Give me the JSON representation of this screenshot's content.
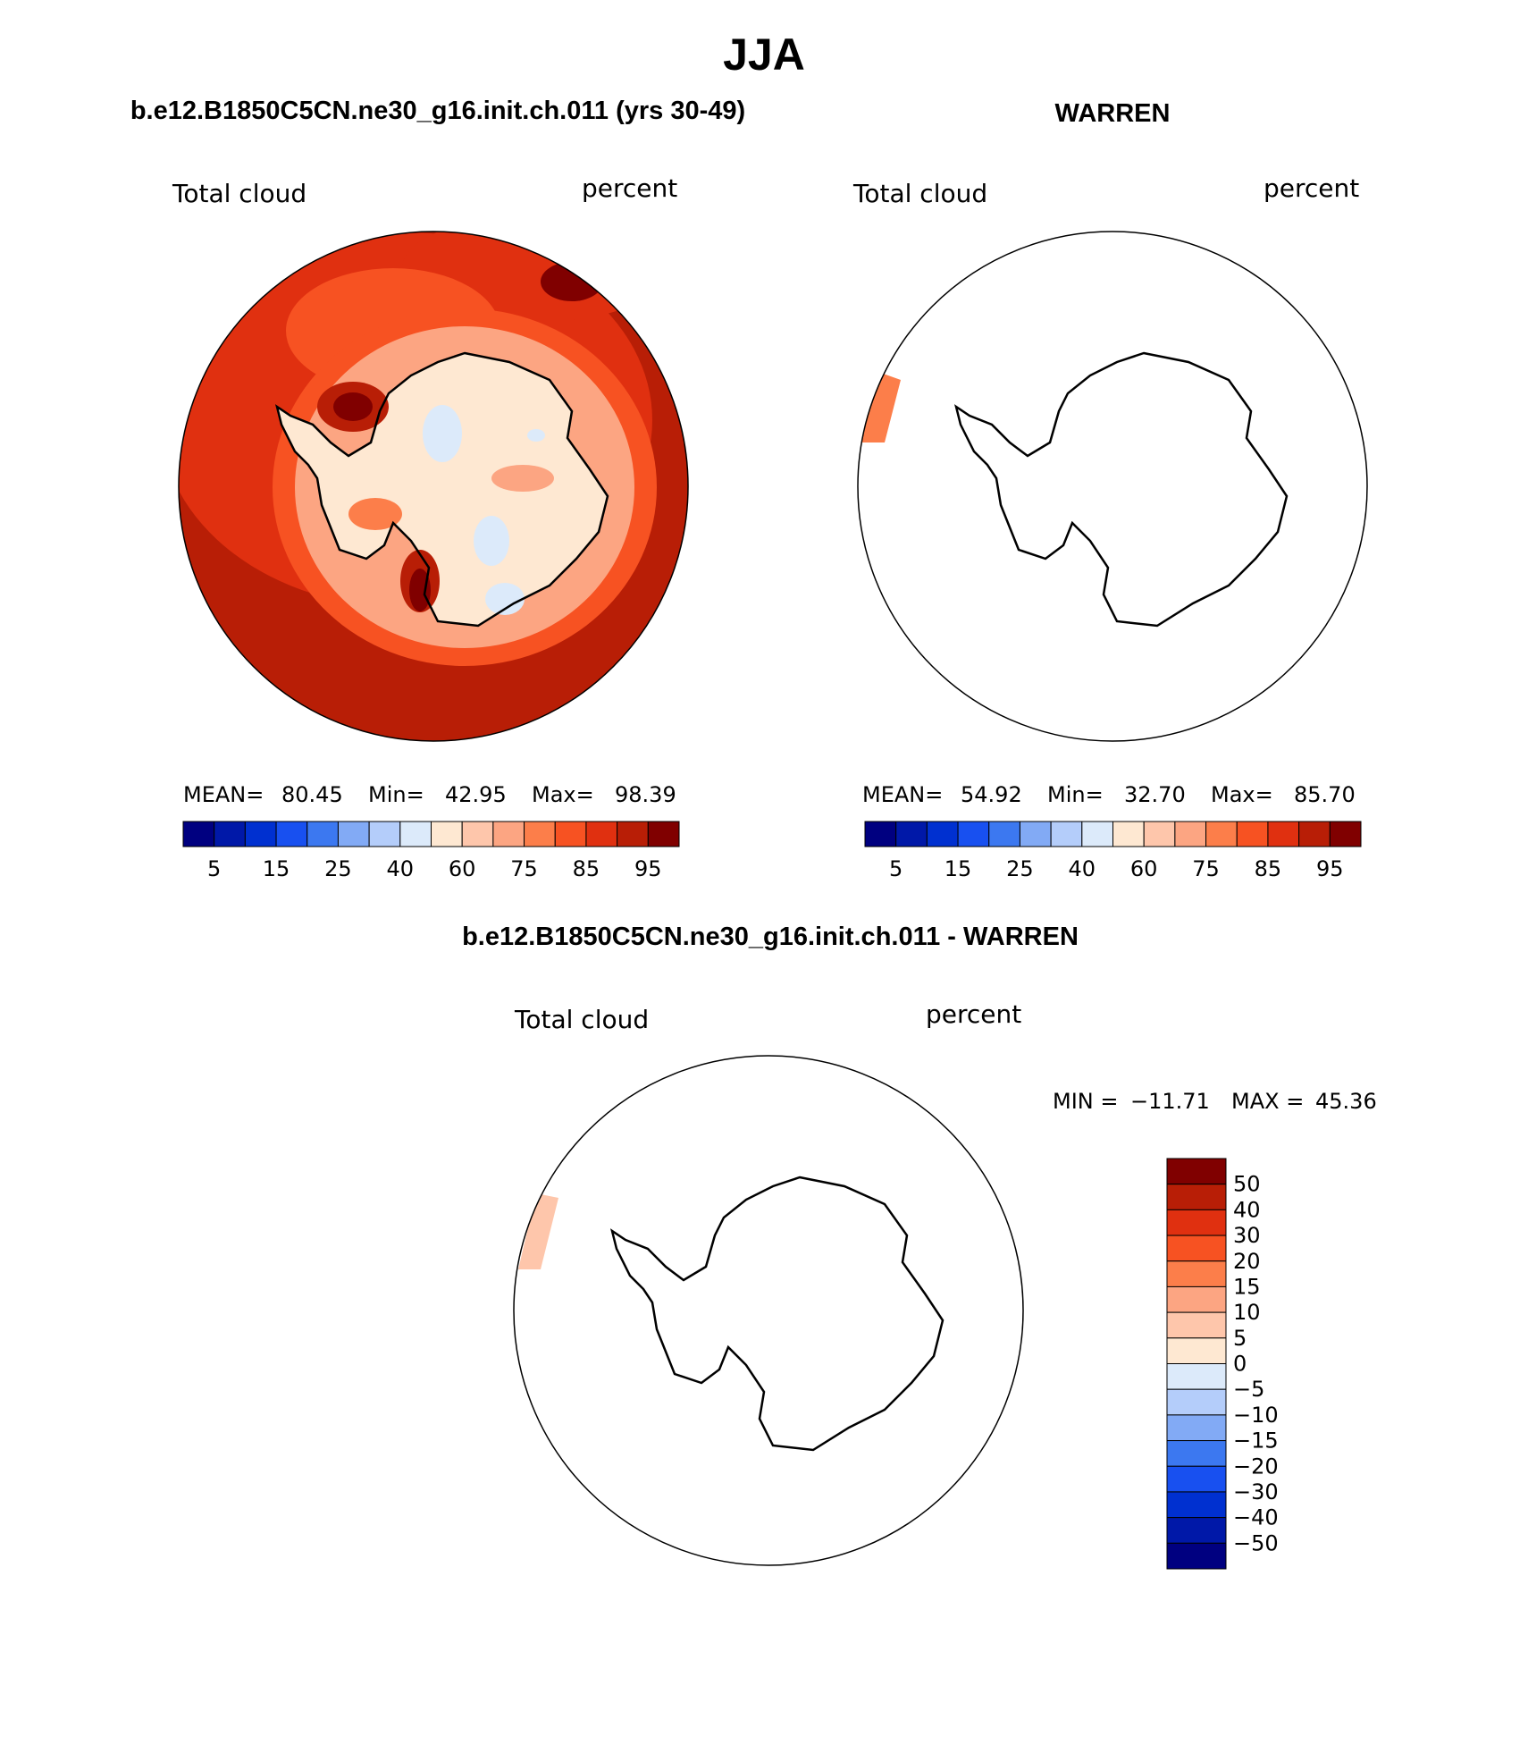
{
  "figure": {
    "title": "JJA"
  },
  "panels": [
    {
      "heading": "b.e12.B1850C5CN.ne30_g16.init.ch.011 (yrs 30-49)",
      "left_label": "Total cloud",
      "right_label": "percent",
      "stats": {
        "mean_label": "MEAN=",
        "mean": "80.45",
        "min_label": "Min=",
        "min": "42.95",
        "max_label": "Max=",
        "max": "98.39"
      }
    },
    {
      "heading": "WARREN",
      "left_label": "Total cloud",
      "right_label": "percent",
      "stats": {
        "mean_label": "MEAN=",
        "mean": "54.92",
        "min_label": "Min=",
        "min": "32.70",
        "max_label": "Max=",
        "max": "85.70"
      }
    },
    {
      "heading": "b.e12.B1850C5CN.ne30_g16.init.ch.011 - WARREN",
      "left_label": "Total cloud",
      "right_label": "percent",
      "stats": {
        "min_label": "MIN =",
        "min": "−11.71",
        "max_label": "MAX =",
        "max": "45.36"
      }
    }
  ],
  "colorbar_horizontal": {
    "colors": [
      "#000080",
      "#0018a8",
      "#0030d0",
      "#1850f0",
      "#3c78f0",
      "#82aaf5",
      "#b4cdfa",
      "#dceafa",
      "#fee8d2",
      "#fec6ab",
      "#fca582",
      "#fc7e4a",
      "#f75222",
      "#e03010",
      "#b81e06",
      "#800000"
    ],
    "tick_labels": [
      "5",
      "15",
      "25",
      "40",
      "60",
      "75",
      "85",
      "95"
    ]
  },
  "colorbar_vertical": {
    "colors": [
      "#800000",
      "#b81e06",
      "#e03010",
      "#f75222",
      "#fc7e4a",
      "#fca582",
      "#fec6ab",
      "#fee8d2",
      "#dceafa",
      "#b4cdfa",
      "#82aaf5",
      "#3c78f0",
      "#1850f0",
      "#0030d0",
      "#0018a8",
      "#000080"
    ],
    "tick_labels": [
      "50",
      "40",
      "30",
      "20",
      "15",
      "10",
      "5",
      "0",
      "−5",
      "−10",
      "−15",
      "−20",
      "−30",
      "−40",
      "−50"
    ]
  },
  "map_fill_colors": {
    "ocean_base": "#b81e06",
    "ocean_band": "#e03010",
    "coast_band": "#f75222",
    "coast_light": "#fca582",
    "interior_light": "#fee8d2",
    "interior_blue": "#dceafa",
    "maximum_spot": "#800000",
    "difference_patch": "#fec6ab"
  },
  "continent_outline": "antarctica"
}
